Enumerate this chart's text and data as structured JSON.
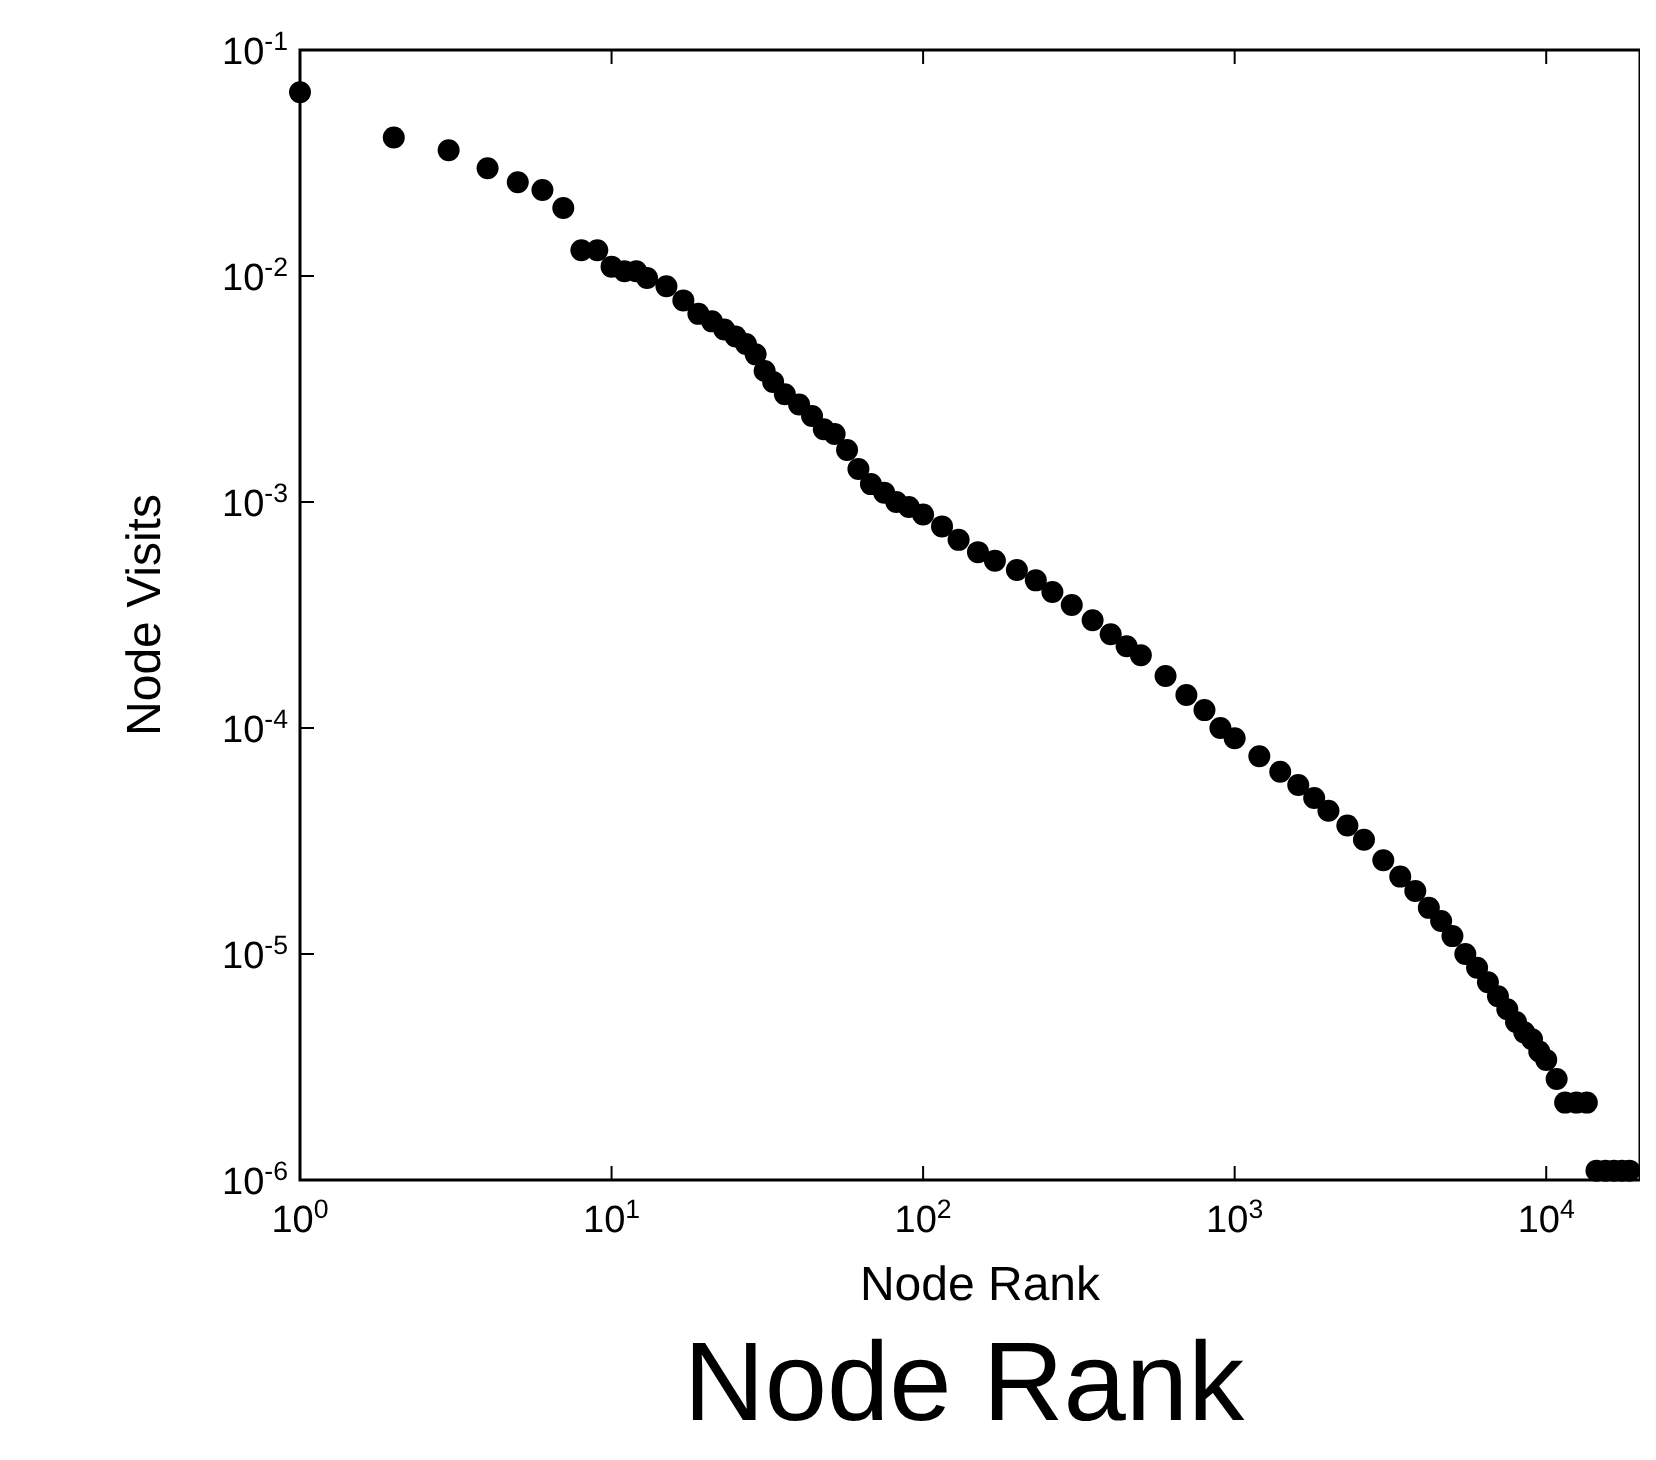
{
  "chart_data": {
    "type": "scatter",
    "xlabel": "Node Rank",
    "ylabel": "Node Visits",
    "log": "xy",
    "marker": "circle",
    "grid": false,
    "xlim": [
      1,
      20000
    ],
    "ylim": [
      1e-06,
      0.1
    ],
    "xticks": [
      {
        "value": 1,
        "label": "10$^{0}$"
      },
      {
        "value": 10,
        "label": "10$^{1}$"
      },
      {
        "value": 100,
        "label": "10$^{2}$"
      },
      {
        "value": 1000,
        "label": "10$^{3}$"
      },
      {
        "value": 10000,
        "label": "10$^{4}$"
      }
    ],
    "yticks": [
      {
        "value": 1e-06,
        "label": "10$^{-6}$"
      },
      {
        "value": 1e-05,
        "label": "10$^{-5}$"
      },
      {
        "value": 0.0001,
        "label": "10$^{-4}$"
      },
      {
        "value": 0.001,
        "label": "10$^{-3}$"
      },
      {
        "value": 0.01,
        "label": "10$^{-2}$"
      },
      {
        "value": 0.1,
        "label": "10$^{-1}$"
      }
    ],
    "annotations": [
      "Node Rank"
    ],
    "series": [
      {
        "color": "#000000",
        "x": [
          1,
          2,
          3,
          4,
          5,
          6,
          7,
          8,
          9,
          10,
          11,
          12,
          13,
          15,
          17,
          19,
          21,
          23,
          25,
          27,
          29,
          31,
          33,
          36,
          40,
          44,
          48,
          52,
          57,
          62,
          68,
          75,
          82,
          90,
          100,
          115,
          130,
          150,
          170,
          200,
          230,
          260,
          300,
          350,
          400,
          450,
          500,
          600,
          700,
          800,
          900,
          1000,
          1200,
          1400,
          1600,
          1800,
          2000,
          2300,
          2600,
          3000,
          3400,
          3800,
          4200,
          4600,
          5000,
          5500,
          6000,
          6500,
          7000,
          7500,
          8000,
          8500,
          9000,
          9500,
          10000,
          10800,
          11500,
          12500,
          13500,
          14500,
          15500,
          16500,
          17500,
          18500
        ],
        "values": [
          0.065,
          0.041,
          0.036,
          0.03,
          0.026,
          0.024,
          0.02,
          0.013,
          0.013,
          0.011,
          0.0105,
          0.0105,
          0.0098,
          0.009,
          0.0078,
          0.0068,
          0.0063,
          0.0058,
          0.0054,
          0.005,
          0.0045,
          0.0038,
          0.0034,
          0.003,
          0.0027,
          0.0024,
          0.0021,
          0.002,
          0.0017,
          0.0014,
          0.0012,
          0.0011,
          0.001,
          0.00095,
          0.00088,
          0.00078,
          0.00068,
          0.0006,
          0.00055,
          0.0005,
          0.00045,
          0.0004,
          0.00035,
          0.0003,
          0.00026,
          0.00023,
          0.00021,
          0.00017,
          0.00014,
          0.00012,
          0.0001,
          9e-05,
          7.5e-05,
          6.4e-05,
          5.6e-05,
          4.9e-05,
          4.3e-05,
          3.7e-05,
          3.2e-05,
          2.6e-05,
          2.2e-05,
          1.9e-05,
          1.6e-05,
          1.4e-05,
          1.2e-05,
          1e-05,
          8.7e-06,
          7.5e-06,
          6.5e-06,
          5.7e-06,
          5e-06,
          4.5e-06,
          4.2e-06,
          3.7e-06,
          3.4e-06,
          2.8e-06,
          2.2e-06,
          2.2e-06,
          2.2e-06,
          1.1e-06,
          1.1e-06,
          1.1e-06,
          1.1e-06,
          1.1e-06
        ]
      }
    ]
  }
}
